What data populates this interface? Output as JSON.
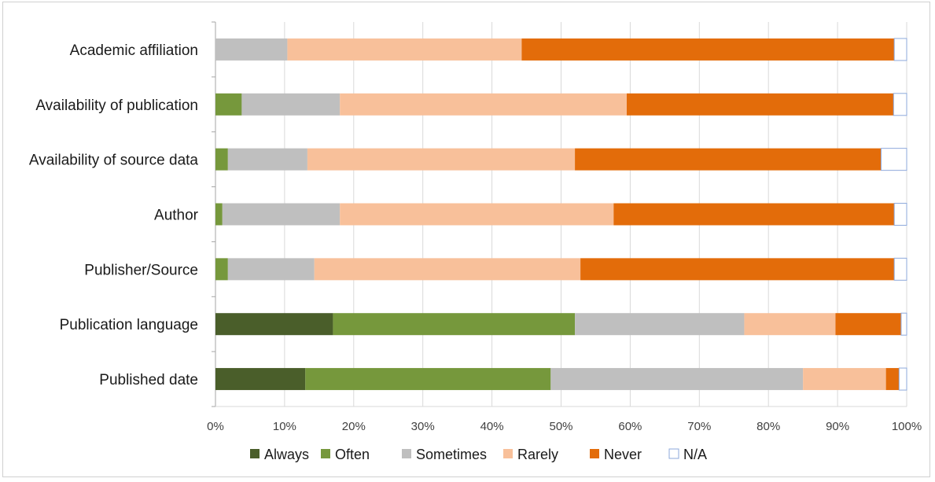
{
  "chart_data": {
    "type": "bar",
    "orientation": "horizontal",
    "stacked": true,
    "title": "",
    "xlabel": "",
    "ylabel": "",
    "xlim": [
      0,
      100
    ],
    "x_ticks": [
      "0%",
      "10%",
      "20%",
      "30%",
      "40%",
      "50%",
      "60%",
      "70%",
      "80%",
      "90%",
      "100%"
    ],
    "grid": true,
    "legend_position": "bottom",
    "categories": [
      "Academic affiliation",
      "Availability of publication",
      "Availability of source data",
      "Author",
      "Publisher/Source",
      "Publication language",
      "Published date"
    ],
    "series": [
      {
        "name": "Always",
        "color": "#4a5e2a",
        "values": [
          0,
          0,
          0,
          0,
          0,
          17,
          13
        ]
      },
      {
        "name": "Often",
        "color": "#76983c",
        "values": [
          0,
          3.8,
          1.8,
          1,
          1.8,
          35,
          35.5
        ]
      },
      {
        "name": "Sometimes",
        "color": "#bfbfbf",
        "values": [
          10.4,
          14.2,
          11.5,
          17,
          12.5,
          24.5,
          36.5
        ]
      },
      {
        "name": "Rarely",
        "color": "#f8c09a",
        "values": [
          33.9,
          41.5,
          38.7,
          39.6,
          38.5,
          13.2,
          12
        ]
      },
      {
        "name": "Never",
        "color": "#e36c0a",
        "values": [
          53.9,
          38.6,
          44.3,
          40.6,
          45.4,
          9.5,
          1.9
        ]
      },
      {
        "name": "N/A",
        "color": "#ffffff",
        "values": [
          1.8,
          1.9,
          3.7,
          1.8,
          1.8,
          0.8,
          1.1
        ]
      }
    ]
  }
}
